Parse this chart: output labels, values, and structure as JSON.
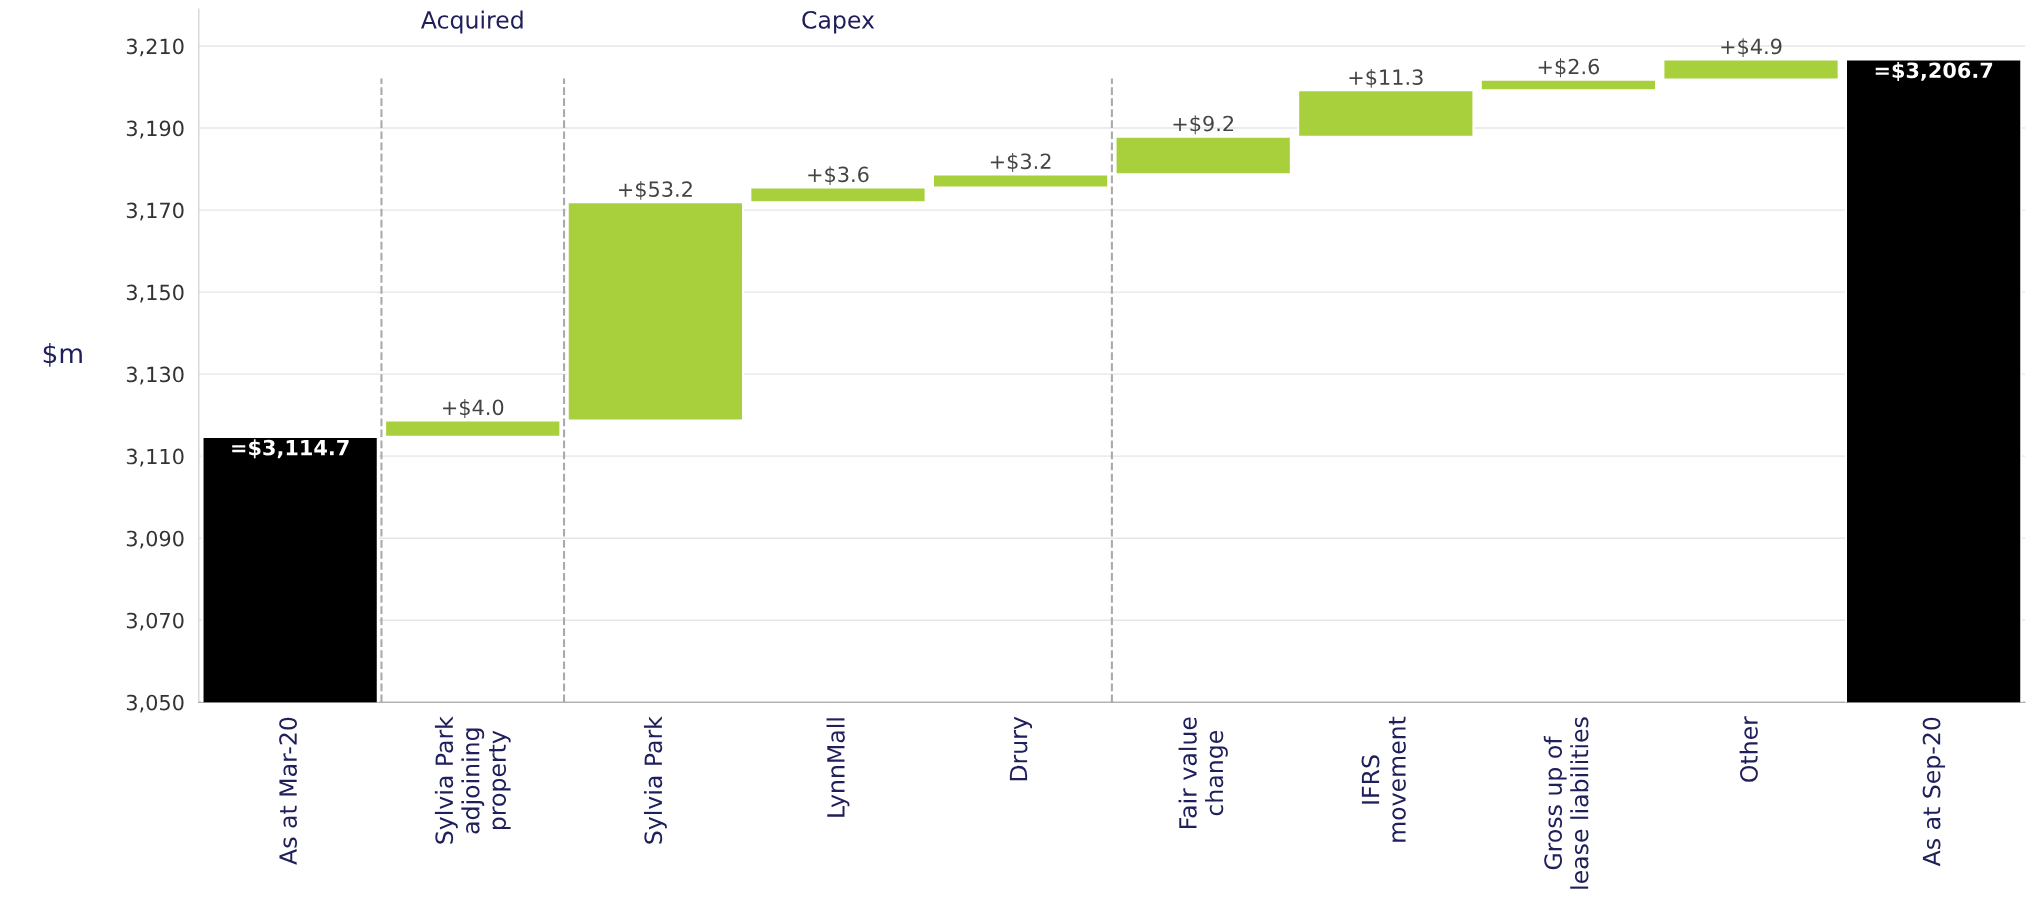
{
  "chart_data": {
    "type": "bar",
    "ylabel": "$m",
    "categories": [
      "As at Mar-20",
      "Sylvia Park\nadjoining\nproperty",
      "Sylvia Park",
      "LynnMall",
      "Drury",
      "Fair value\nchange",
      "IFRS\nmovement",
      "Gross up of\nlease liabilities",
      "Other",
      "As at Sep-20"
    ],
    "values": [
      3114.7,
      4.0,
      53.2,
      3.6,
      3.2,
      9.2,
      11.3,
      2.6,
      4.9,
      3206.7
    ],
    "base": [
      0,
      3114.7,
      3118.7,
      3171.9,
      3175.5,
      3178.7,
      3187.9,
      3199.2,
      3201.8,
      0
    ],
    "colors": [
      "#000000",
      "#a8cf3c",
      "#a8cf3c",
      "#a8cf3c",
      "#a8cf3c",
      "#a8cf3c",
      "#a8cf3c",
      "#a8cf3c",
      "#a8cf3c",
      "#000000"
    ],
    "value_labels": [
      "=$3,114.7",
      "+$4.0",
      "+$53.2",
      "+$3.6",
      "+$3.2",
      "+$9.2",
      "+$11.3",
      "+$2.6",
      "+$4.9",
      "=$3,206.7"
    ],
    "ylim": [
      3050,
      3219
    ],
    "yticks": [
      {
        "value": 3050,
        "label": "3,050"
      },
      {
        "value": 3070,
        "label": "3,070"
      },
      {
        "value": 3090,
        "label": "3,090"
      },
      {
        "value": 3110,
        "label": "3,110"
      },
      {
        "value": 3130,
        "label": "3,130"
      },
      {
        "value": 3150,
        "label": "3,150"
      },
      {
        "value": 3170,
        "label": "3,170"
      },
      {
        "value": 3190,
        "label": "3,190"
      },
      {
        "value": 3210,
        "label": "3,210"
      }
    ],
    "grid": "y",
    "annotations": [
      "Acquired",
      "Capex"
    ]
  }
}
